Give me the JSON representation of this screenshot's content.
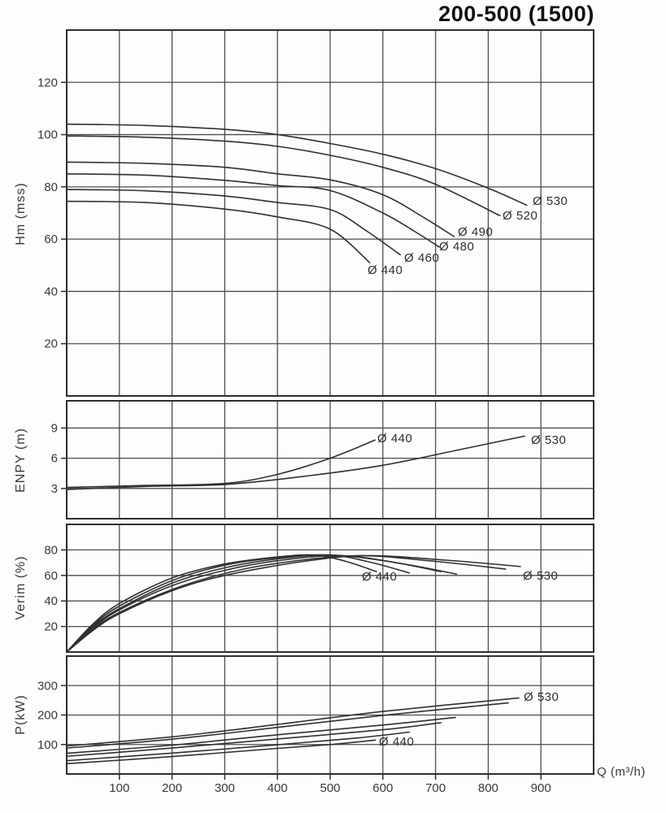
{
  "title": "200-500 (1500)",
  "colors": {
    "background": "#fdfdfb",
    "curve": "#303030",
    "grid": "#4d4d4d",
    "border": "#2e2e2e",
    "text": "#3a3a3a"
  },
  "x_axis": {
    "label": "Q (m³/h)",
    "ticks": [
      100,
      200,
      300,
      400,
      500,
      600,
      700,
      800,
      900
    ],
    "lim": [
      0,
      1000
    ]
  },
  "chart_data": [
    {
      "id": "head",
      "type": "line",
      "ylabel": "Hm (mss)",
      "yticks": [
        20,
        40,
        60,
        80,
        100,
        120
      ],
      "ylim": [
        0,
        140
      ],
      "series": [
        {
          "name": "Ø 530",
          "label": "Ø 530",
          "label_offset": [
            7,
            -13
          ],
          "points": [
            [
              0,
              104
            ],
            [
              150,
              103.5
            ],
            [
              300,
              102
            ],
            [
              400,
              100
            ],
            [
              500,
              96.6
            ],
            [
              600,
              92.5
            ],
            [
              700,
              87
            ],
            [
              800,
              79.5
            ],
            [
              873,
              73
            ]
          ]
        },
        {
          "name": "Ø 520",
          "label": "Ø 520",
          "label_offset": [
            3,
            -8
          ],
          "points": [
            [
              0,
              99.5
            ],
            [
              150,
              99
            ],
            [
              300,
              97.5
            ],
            [
              400,
              95.5
            ],
            [
              500,
              92.1
            ],
            [
              600,
              87.5
            ],
            [
              700,
              81
            ],
            [
              822,
              69
            ]
          ]
        },
        {
          "name": "Ø 490",
          "label": "Ø 490",
          "label_offset": [
            5,
            -14
          ],
          "points": [
            [
              0,
              89.5
            ],
            [
              150,
              89
            ],
            [
              300,
              87.5
            ],
            [
              400,
              85
            ],
            [
              500,
              82.7
            ],
            [
              600,
              77
            ],
            [
              680,
              68
            ],
            [
              735,
              61
            ]
          ]
        },
        {
          "name": "Ø 480",
          "label": "Ø 480",
          "label_offset": [
            0,
            -9
          ],
          "points": [
            [
              0,
              85
            ],
            [
              150,
              84.5
            ],
            [
              300,
              82.5
            ],
            [
              400,
              80.5
            ],
            [
              500,
              78.6
            ],
            [
              600,
              70
            ],
            [
              660,
              63
            ],
            [
              707,
              57
            ]
          ]
        },
        {
          "name": "Ø 460",
          "label": "Ø 460",
          "label_offset": [
            5,
            -4
          ],
          "points": [
            [
              0,
              79
            ],
            [
              150,
              78.5
            ],
            [
              300,
              76.5
            ],
            [
              400,
              74
            ],
            [
              500,
              71.3
            ],
            [
              570,
              63
            ],
            [
              633,
              54
            ]
          ]
        },
        {
          "name": "Ø 440",
          "label": "Ø 440",
          "label_offset": [
            -3,
            1
          ],
          "points": [
            [
              0,
              74.5
            ],
            [
              150,
              74
            ],
            [
              300,
              71.5
            ],
            [
              400,
              68.5
            ],
            [
              500,
              63.8
            ],
            [
              575,
              51
            ]
          ]
        }
      ]
    },
    {
      "id": "npsh",
      "type": "line",
      "ylabel": "ENPY (m)",
      "yticks": [
        3,
        6,
        9
      ],
      "ylim": [
        0,
        11.7
      ],
      "series": [
        {
          "name": "Ø 440",
          "label": "Ø 440",
          "label_offset": [
            3,
            -10
          ],
          "points": [
            [
              0,
              3.1
            ],
            [
              150,
              3.3
            ],
            [
              300,
              3.5
            ],
            [
              400,
              4.4
            ],
            [
              500,
              6.0
            ],
            [
              585,
              7.8
            ]
          ]
        },
        {
          "name": "Ø 530",
          "label": "Ø 530",
          "label_offset": [
            8,
            -3
          ],
          "points": [
            [
              0,
              2.9
            ],
            [
              150,
              3.2
            ],
            [
              300,
              3.4
            ],
            [
              450,
              4.2
            ],
            [
              600,
              5.3
            ],
            [
              750,
              6.9
            ],
            [
              869,
              8.2
            ]
          ]
        }
      ]
    },
    {
      "id": "efficiency",
      "type": "line",
      "ylabel": "Verim (%)",
      "yticks": [
        20,
        40,
        60,
        80
      ],
      "ylim": [
        0,
        100
      ],
      "series": [
        {
          "name": "Ø 440",
          "label": "Ø 440",
          "label_offset": [
            -18,
            -2
          ],
          "points": [
            [
              0,
              0
            ],
            [
              50,
              22
            ],
            [
              100,
              38
            ],
            [
              200,
              58
            ],
            [
              300,
              69
            ],
            [
              400,
              74.5
            ],
            [
              470,
              76
            ],
            [
              530,
              71
            ],
            [
              588,
              63
            ]
          ]
        },
        {
          "name": "Ø 460",
          "points": [
            [
              0,
              0
            ],
            [
              50,
              21
            ],
            [
              100,
              36
            ],
            [
              200,
              56
            ],
            [
              300,
              68
            ],
            [
              400,
              74
            ],
            [
              500,
              76
            ],
            [
              580,
              70
            ],
            [
              650,
              62
            ]
          ]
        },
        {
          "name": "Ø 480",
          "points": [
            [
              0,
              0
            ],
            [
              50,
              20
            ],
            [
              100,
              34
            ],
            [
              200,
              54
            ],
            [
              300,
              66
            ],
            [
              400,
              73
            ],
            [
              500,
              76
            ],
            [
              610,
              71
            ],
            [
              710,
              63
            ]
          ]
        },
        {
          "name": "Ø 490",
          "points": [
            [
              0,
              0
            ],
            [
              50,
              19
            ],
            [
              100,
              33
            ],
            [
              200,
              52
            ],
            [
              300,
              64
            ],
            [
              400,
              71.5
            ],
            [
              520,
              75.5
            ],
            [
              640,
              69
            ],
            [
              740,
              61
            ]
          ]
        },
        {
          "name": "Ø 520",
          "points": [
            [
              0,
              0
            ],
            [
              50,
              18
            ],
            [
              100,
              31
            ],
            [
              200,
              49
            ],
            [
              300,
              61.5
            ],
            [
              400,
              69.5
            ],
            [
              550,
              75.5
            ],
            [
              700,
              71
            ],
            [
              833,
              65
            ]
          ]
        },
        {
          "name": "Ø 530",
          "label": "Ø 530",
          "label_offset": [
            3,
            3
          ],
          "points": [
            [
              0,
              0
            ],
            [
              50,
              17
            ],
            [
              100,
              30
            ],
            [
              200,
              48
            ],
            [
              300,
              60
            ],
            [
              450,
              71
            ],
            [
              570,
              75.5
            ],
            [
              720,
              72
            ],
            [
              861,
              67
            ]
          ]
        }
      ]
    },
    {
      "id": "power",
      "type": "line",
      "ylabel": "P(kW)",
      "yticks": [
        100,
        200,
        300
      ],
      "ylim": [
        0,
        400
      ],
      "series": [
        {
          "name": "Ø 530",
          "label": "Ø 530",
          "label_offset": [
            6,
            -9
          ],
          "points": [
            [
              0,
              95
            ],
            [
              200,
              126
            ],
            [
              400,
              168
            ],
            [
              600,
              212
            ],
            [
              858,
              258
            ]
          ]
        },
        {
          "name": "Ø 520",
          "points": [
            [
              0,
              88
            ],
            [
              200,
              118
            ],
            [
              400,
              158
            ],
            [
              600,
              199
            ],
            [
              838,
              241
            ]
          ]
        },
        {
          "name": "Ø 490",
          "points": [
            [
              0,
              70
            ],
            [
              200,
              98
            ],
            [
              400,
              133
            ],
            [
              600,
              166
            ],
            [
              738,
              192
            ]
          ]
        },
        {
          "name": "Ø 480",
          "points": [
            [
              0,
              60
            ],
            [
              200,
              88
            ],
            [
              400,
              119
            ],
            [
              600,
              150
            ],
            [
              710,
              174
            ]
          ]
        },
        {
          "name": "Ø 460",
          "points": [
            [
              0,
              45
            ],
            [
              200,
              71
            ],
            [
              400,
              99
            ],
            [
              550,
              122
            ],
            [
              650,
              142
            ]
          ]
        },
        {
          "name": "Ø 440",
          "label": "Ø 440",
          "label_offset": [
            4,
            -6
          ],
          "points": [
            [
              0,
              35
            ],
            [
              200,
              59
            ],
            [
              400,
              87
            ],
            [
              500,
              100
            ],
            [
              586,
              115
            ]
          ]
        }
      ]
    }
  ]
}
